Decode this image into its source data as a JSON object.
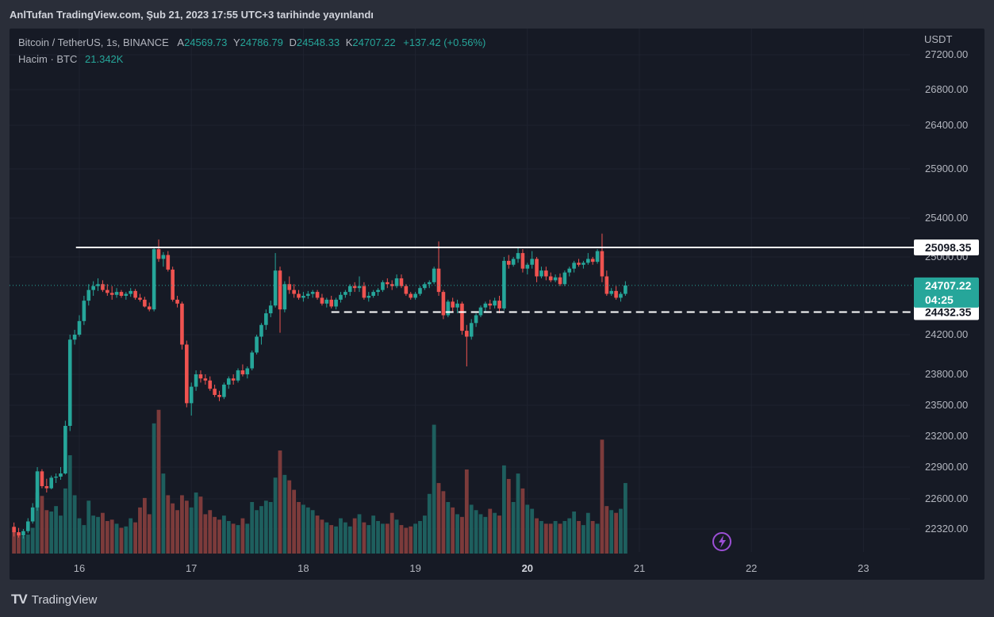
{
  "header": {
    "publication": "AnlTufan TradingView.com, Şub 21, 2023 17:55 UTC+3 tarihinde yayınlandı"
  },
  "footer": {
    "brand": "TradingView",
    "logo_icon": "tradingview-logo-icon"
  },
  "legend": {
    "symbol": "Bitcoin / TetherUS, 1s, BINANCE",
    "open_label": "A",
    "open": "24569.73",
    "high_label": "Y",
    "high": "24786.79",
    "low_label": "D",
    "low": "24548.33",
    "close_label": "K",
    "close": "24707.22",
    "change": "+137.42 (+0.56%)",
    "volume_label": "Hacim · BTC",
    "volume": "21.342K"
  },
  "colors": {
    "up": "#26a69a",
    "down": "#ef5350",
    "volume_up": "#1e5f5e",
    "volume_down": "#7c3b3b",
    "background": "#161a25",
    "text": "#b2b5be",
    "price_badge": "#26a69a"
  },
  "chart_data": {
    "type": "candlestick",
    "y_axis_unit": "USDT",
    "y_ticks": [
      27200,
      26800,
      26400,
      25900,
      25400,
      25000,
      24200,
      23800,
      23500,
      23200,
      22900,
      22600,
      22320
    ],
    "y_tick_labels": [
      "27200.00",
      "26800.00",
      "26400.00",
      "25900.00",
      "25400.00",
      "25000.00",
      "24200.00",
      "23800.00",
      "23500.00",
      "23200.00",
      "22900.00",
      "22600.00",
      "22320.00"
    ],
    "x_ticks": [
      16,
      17,
      18,
      19,
      20,
      21,
      22,
      23
    ],
    "x_tick_labels": [
      "16",
      "17",
      "18",
      "19",
      "20",
      "21",
      "22",
      "23"
    ],
    "x_bold_ticks": [
      20
    ],
    "resistance": {
      "value": 25098.35,
      "label": "25098.35",
      "style": "solid",
      "from_day": 15.97
    },
    "support": {
      "value": 24432.35,
      "label": "24432.35",
      "style": "dashed",
      "from_day": 18.25
    },
    "last_price": {
      "value": 24707.22,
      "label": "24707.22",
      "countdown": "04:25"
    },
    "x_start_day": 15.4167,
    "candle_step_day": 0.041667,
    "ohlc": [
      [
        22340,
        22380,
        22250,
        22290
      ],
      [
        22290,
        22330,
        22240,
        22260
      ],
      [
        22260,
        22320,
        22230,
        22300
      ],
      [
        22300,
        22420,
        22280,
        22390
      ],
      [
        22390,
        22560,
        22370,
        22520
      ],
      [
        22520,
        22900,
        22490,
        22860
      ],
      [
        22860,
        22880,
        22700,
        22720
      ],
      [
        22720,
        22790,
        22660,
        22700
      ],
      [
        22700,
        22820,
        22690,
        22800
      ],
      [
        22800,
        22840,
        22750,
        22810
      ],
      [
        22810,
        22900,
        22780,
        22840
      ],
      [
        22840,
        23350,
        22830,
        23300
      ],
      [
        23300,
        24200,
        23250,
        24150
      ],
      [
        24150,
        24250,
        24100,
        24200
      ],
      [
        24200,
        24400,
        24180,
        24340
      ],
      [
        24340,
        24600,
        24300,
        24550
      ],
      [
        24550,
        24720,
        24500,
        24660
      ],
      [
        24660,
        24750,
        24600,
        24700
      ],
      [
        24700,
        24780,
        24650,
        24720
      ],
      [
        24720,
        24760,
        24640,
        24660
      ],
      [
        24660,
        24720,
        24600,
        24630
      ],
      [
        24630,
        24700,
        24560,
        24610
      ],
      [
        24610,
        24680,
        24580,
        24640
      ],
      [
        24640,
        24660,
        24580,
        24600
      ],
      [
        24600,
        24640,
        24560,
        24620
      ],
      [
        24620,
        24680,
        24590,
        24650
      ],
      [
        24650,
        24670,
        24560,
        24580
      ],
      [
        24580,
        24620,
        24540,
        24560
      ],
      [
        24560,
        24590,
        24480,
        24490
      ],
      [
        24490,
        24530,
        24440,
        24460
      ],
      [
        24460,
        25100,
        24440,
        25080
      ],
      [
        25080,
        25180,
        24950,
        24980
      ],
      [
        24980,
        25050,
        24900,
        25020
      ],
      [
        25020,
        25060,
        24850,
        24870
      ],
      [
        24870,
        24900,
        24540,
        24560
      ],
      [
        24560,
        24600,
        24480,
        24520
      ],
      [
        24520,
        24540,
        24050,
        24100
      ],
      [
        24100,
        24140,
        23480,
        23520
      ],
      [
        23520,
        23720,
        23400,
        23680
      ],
      [
        23680,
        23840,
        23640,
        23800
      ],
      [
        23800,
        23840,
        23720,
        23760
      ],
      [
        23760,
        23800,
        23700,
        23740
      ],
      [
        23740,
        23780,
        23640,
        23660
      ],
      [
        23660,
        23700,
        23580,
        23600
      ],
      [
        23600,
        23640,
        23540,
        23580
      ],
      [
        23580,
        23720,
        23560,
        23700
      ],
      [
        23700,
        23780,
        23660,
        23760
      ],
      [
        23760,
        23800,
        23700,
        23740
      ],
      [
        23740,
        23860,
        23720,
        23840
      ],
      [
        23840,
        23900,
        23780,
        23800
      ],
      [
        23800,
        23880,
        23760,
        23860
      ],
      [
        23860,
        24040,
        23840,
        24020
      ],
      [
        24020,
        24200,
        24000,
        24180
      ],
      [
        24180,
        24320,
        24100,
        24300
      ],
      [
        24300,
        24460,
        24250,
        24420
      ],
      [
        24420,
        24550,
        24380,
        24500
      ],
      [
        24500,
        25040,
        24480,
        24860
      ],
      [
        24860,
        24900,
        24220,
        24460
      ],
      [
        24460,
        24750,
        24430,
        24720
      ],
      [
        24720,
        24800,
        24620,
        24660
      ],
      [
        24660,
        24720,
        24580,
        24620
      ],
      [
        24620,
        24660,
        24560,
        24580
      ],
      [
        24580,
        24640,
        24540,
        24600
      ],
      [
        24600,
        24650,
        24570,
        24620
      ],
      [
        24620,
        24660,
        24580,
        24640
      ],
      [
        24640,
        24660,
        24560,
        24580
      ],
      [
        24580,
        24620,
        24500,
        24520
      ],
      [
        24520,
        24580,
        24480,
        24560
      ],
      [
        24560,
        24600,
        24470,
        24490
      ],
      [
        24490,
        24580,
        24460,
        24560
      ],
      [
        24560,
        24640,
        24530,
        24610
      ],
      [
        24610,
        24660,
        24580,
        24640
      ],
      [
        24640,
        24720,
        24600,
        24700
      ],
      [
        24700,
        24740,
        24640,
        24680
      ],
      [
        24680,
        24800,
        24640,
        24700
      ],
      [
        24700,
        24740,
        24560,
        24580
      ],
      [
        24580,
        24640,
        24540,
        24600
      ],
      [
        24600,
        24660,
        24580,
        24640
      ],
      [
        24640,
        24680,
        24600,
        24660
      ],
      [
        24660,
        24760,
        24640,
        24740
      ],
      [
        24740,
        24780,
        24680,
        24720
      ],
      [
        24720,
        24760,
        24660,
        24700
      ],
      [
        24700,
        24820,
        24680,
        24780
      ],
      [
        24780,
        24820,
        24680,
        24700
      ],
      [
        24700,
        24720,
        24600,
        24620
      ],
      [
        24620,
        24640,
        24560,
        24580
      ],
      [
        24580,
        24640,
        24560,
        24620
      ],
      [
        24620,
        24700,
        24600,
        24680
      ],
      [
        24680,
        24740,
        24660,
        24720
      ],
      [
        24720,
        24760,
        24680,
        24740
      ],
      [
        24740,
        24900,
        24720,
        24880
      ],
      [
        24880,
        25160,
        24600,
        24640
      ],
      [
        24640,
        24660,
        24360,
        24400
      ],
      [
        24400,
        24560,
        24380,
        24540
      ],
      [
        24540,
        24580,
        24440,
        24480
      ],
      [
        24480,
        24560,
        24420,
        24520
      ],
      [
        24520,
        24540,
        24200,
        24240
      ],
      [
        24240,
        24300,
        23880,
        24180
      ],
      [
        24180,
        24360,
        24150,
        24320
      ],
      [
        24320,
        24420,
        24280,
        24400
      ],
      [
        24400,
        24500,
        24380,
        24480
      ],
      [
        24480,
        24540,
        24440,
        24520
      ],
      [
        24520,
        24560,
        24460,
        24500
      ],
      [
        24500,
        24580,
        24470,
        24550
      ],
      [
        24550,
        24600,
        24420,
        24470
      ],
      [
        24470,
        25000,
        24450,
        24960
      ],
      [
        24960,
        25020,
        24880,
        24920
      ],
      [
        24920,
        25000,
        24900,
        24980
      ],
      [
        24980,
        25100,
        24940,
        25040
      ],
      [
        25040,
        25080,
        24840,
        24880
      ],
      [
        24880,
        24940,
        24820,
        24920
      ],
      [
        24920,
        25060,
        24880,
        24980
      ],
      [
        24980,
        25000,
        24740,
        24800
      ],
      [
        24800,
        24900,
        24780,
        24860
      ],
      [
        24860,
        24900,
        24760,
        24800
      ],
      [
        24800,
        24840,
        24740,
        24760
      ],
      [
        24760,
        24820,
        24740,
        24790
      ],
      [
        24790,
        24830,
        24700,
        24720
      ],
      [
        24720,
        24860,
        24700,
        24840
      ],
      [
        24840,
        24900,
        24800,
        24880
      ],
      [
        24880,
        24960,
        24840,
        24940
      ],
      [
        24940,
        24980,
        24900,
        24920
      ],
      [
        24920,
        24960,
        24880,
        24940
      ],
      [
        24940,
        25040,
        24920,
        24980
      ],
      [
        24980,
        25000,
        24920,
        24950
      ],
      [
        24950,
        25080,
        24930,
        25060
      ],
      [
        25060,
        25240,
        24740,
        24800
      ],
      [
        24800,
        24860,
        24600,
        24620
      ],
      [
        24620,
        24680,
        24600,
        24650
      ],
      [
        24650,
        24700,
        24560,
        24580
      ],
      [
        24580,
        24640,
        24540,
        24620
      ],
      [
        24620,
        24750,
        24600,
        24707
      ]
    ],
    "volume": [
      320,
      300,
      260,
      280,
      380,
      900,
      850,
      640,
      620,
      700,
      560,
      960,
      1450,
      860,
      520,
      420,
      780,
      560,
      540,
      600,
      480,
      500,
      440,
      380,
      400,
      520,
      460,
      680,
      820,
      580,
      1920,
      2120,
      1180,
      860,
      740,
      640,
      860,
      780,
      680,
      900,
      840,
      580,
      640,
      540,
      500,
      560,
      480,
      440,
      420,
      520,
      440,
      760,
      640,
      700,
      780,
      760,
      1120,
      1520,
      1160,
      1080,
      940,
      760,
      720,
      680,
      640,
      560,
      500,
      460,
      420,
      400,
      520,
      460,
      400,
      520,
      580,
      460,
      420,
      560,
      480,
      440,
      440,
      600,
      500,
      420,
      380,
      400,
      440,
      480,
      560,
      880,
      1900,
      1040,
      920,
      760,
      680,
      580,
      540,
      1240,
      720,
      640,
      580,
      540,
      660,
      600,
      560,
      1300,
      1100,
      760,
      1180,
      960,
      720,
      660,
      520,
      480,
      440,
      440,
      480,
      440,
      480,
      520,
      620,
      480,
      420,
      600,
      480,
      440,
      1680,
      700,
      640,
      600,
      660,
      1040
    ]
  }
}
